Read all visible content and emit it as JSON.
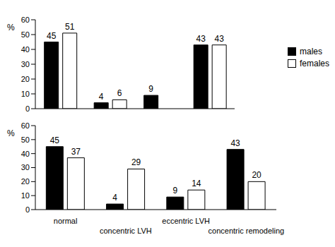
{
  "chart_data": [
    {
      "type": "bar",
      "y_label": "%",
      "categories": [
        "normal",
        "concentric LVH",
        "eccentric LVH",
        "concentric remodeling"
      ],
      "series": [
        {
          "name": "males",
          "color": "#000000",
          "values": [
            45,
            4,
            9,
            43
          ]
        },
        {
          "name": "females",
          "color": "#ffffff",
          "values": [
            51,
            6,
            0,
            43
          ]
        }
      ],
      "ylim": [
        0,
        60
      ],
      "yticks": [
        0,
        10,
        20,
        30,
        40,
        50,
        60
      ],
      "data_labels": true,
      "legend": "right",
      "tick_labels": "y"
    },
    {
      "type": "bar",
      "y_label": "%",
      "categories": [
        "normal",
        "concentric LVH",
        "eccentric LVH",
        "concentric remodeling"
      ],
      "series": [
        {
          "name": "males",
          "color": "#000000",
          "values": [
            45,
            4,
            9,
            43
          ]
        },
        {
          "name": "females",
          "color": "#ffffff",
          "values": [
            37,
            29,
            14,
            20
          ]
        }
      ],
      "ylim": [
        0,
        60
      ],
      "yticks": [
        0,
        10,
        20,
        30,
        40,
        50,
        60
      ],
      "data_labels": true
    }
  ]
}
